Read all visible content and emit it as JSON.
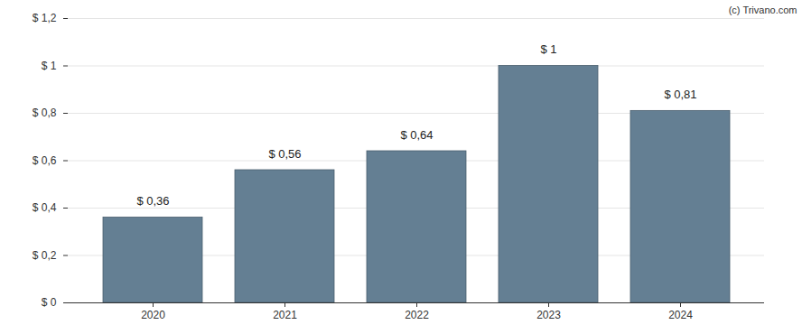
{
  "chart_data": {
    "type": "bar",
    "caption": "(c) Trivano.com",
    "categories": [
      "2020",
      "2021",
      "2022",
      "2023",
      "2024"
    ],
    "values": [
      0.36,
      0.56,
      0.64,
      1,
      0.81
    ],
    "value_labels": [
      "$ 0,36",
      "$ 0,56",
      "$ 0,64",
      "$ 1",
      "$ 0,81"
    ],
    "data_labels": true,
    "color": "#647f93",
    "ylim": [
      0,
      1.2
    ],
    "yticks": [
      {
        "value": 0,
        "label": "$ 0"
      },
      {
        "value": 0.2,
        "label": "$ 0,2"
      },
      {
        "value": 0.4,
        "label": "$ 0,4"
      },
      {
        "value": 0.6,
        "label": "$ 0,6"
      },
      {
        "value": 0.8,
        "label": "$ 0,8"
      },
      {
        "value": 1,
        "label": "$ 1"
      },
      {
        "value": 1.2,
        "label": "$ 1,2"
      }
    ],
    "grid": true
  }
}
